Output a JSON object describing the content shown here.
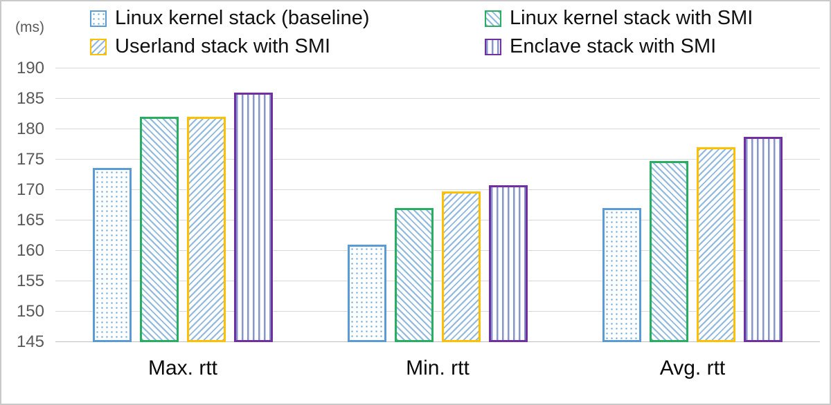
{
  "chart_data": {
    "type": "bar",
    "title": "",
    "unit_label": "(ms)",
    "xlabel": "",
    "ylabel": "(ms)",
    "ylim": [
      145,
      190
    ],
    "ytick_step": 5,
    "grid": true,
    "legend_position": "top",
    "categories": [
      "Max. rtt",
      "Min. rtt",
      "Avg. rtt"
    ],
    "series": [
      {
        "name": "Linux kernel stack (baseline)",
        "pattern": "dots",
        "color": "#5B9BD5",
        "values": [
          173.6,
          161.0,
          167.0
        ]
      },
      {
        "name": "Linux kernel stack with SMI",
        "pattern": "diag",
        "color": "#27AE60",
        "values": [
          182.0,
          167.0,
          174.8
        ]
      },
      {
        "name": "Userland stack with SMI",
        "pattern": "diag2",
        "color": "#FFC000",
        "values": [
          182.0,
          169.8,
          177.0
        ]
      },
      {
        "name": "Enclave stack with SMI",
        "pattern": "vert",
        "color": "#7030A0",
        "values": [
          186.0,
          170.8,
          178.7
        ]
      }
    ]
  }
}
